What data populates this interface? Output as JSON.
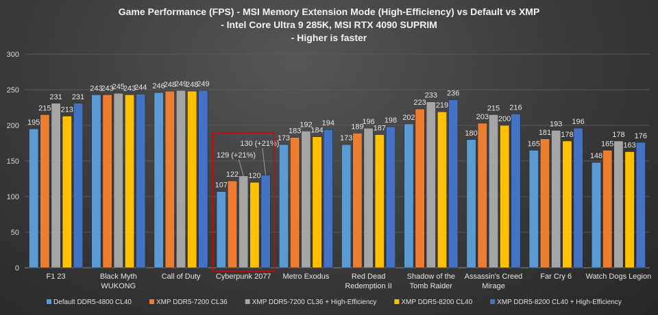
{
  "chart_data": {
    "type": "bar",
    "title": [
      "Game Performance (FPS) - MSI Memory Extension Mode (High-Efficiency) vs Default vs XMP",
      "- Intel Core Ultra 9 285K, MSI RTX 4090 SUPRIM",
      "- Higher is faster"
    ],
    "xlabel": "",
    "ylabel": "",
    "ylim": [
      0,
      300
    ],
    "yticks": [
      0,
      50,
      100,
      150,
      200,
      250,
      300
    ],
    "grid": true,
    "legend_position": "bottom",
    "categories": [
      [
        "F1 23"
      ],
      [
        "Black Myth",
        "WUKONG"
      ],
      [
        "Call of Duty"
      ],
      [
        "Cyberpunk 2077"
      ],
      [
        "Metro Exodus"
      ],
      [
        "Red Dead",
        "Redemption II"
      ],
      [
        "Shadow of the",
        "Tomb Raider"
      ],
      [
        "Assassin's Creed",
        "Mirage"
      ],
      [
        "Far Cry 6"
      ],
      [
        "Watch Dogs Legion"
      ]
    ],
    "series": [
      {
        "name": "Default DDR5-4800 CL40",
        "color": "#5b9bd5",
        "values": [
          195,
          243,
          246,
          107,
          173,
          173,
          202,
          180,
          165,
          148
        ]
      },
      {
        "name": "XMP DDR5-7200 CL36",
        "color": "#ed7d31",
        "values": [
          215,
          243,
          248,
          122,
          183,
          189,
          223,
          203,
          181,
          165
        ]
      },
      {
        "name": "XMP DDR5-7200 CL36 + High-Efficiency",
        "color": "#a5a5a5",
        "values": [
          231,
          245,
          249,
          129,
          192,
          196,
          233,
          215,
          193,
          178
        ]
      },
      {
        "name": "XMP DDR5-8200 CL40",
        "color": "#ffc000",
        "values": [
          213,
          243,
          248,
          120,
          184,
          187,
          219,
          200,
          178,
          163
        ]
      },
      {
        "name": "XMP DDR5-8200 CL40 + High-Efficiency",
        "color": "#4472c4",
        "values": [
          231,
          244,
          249,
          130,
          194,
          198,
          236,
          216,
          196,
          176
        ]
      }
    ],
    "annotations": [
      {
        "category": "Cyberpunk 2077",
        "series": "XMP DDR5-7200 CL36 + High-Efficiency",
        "text": "129 (+21%)"
      },
      {
        "category": "Cyberpunk 2077",
        "series": "XMP DDR5-8200 CL40 + High-Efficiency",
        "text": "130 (+21%)"
      }
    ],
    "highlight": {
      "category": "Cyberpunk 2077",
      "color": "#e00000"
    }
  }
}
